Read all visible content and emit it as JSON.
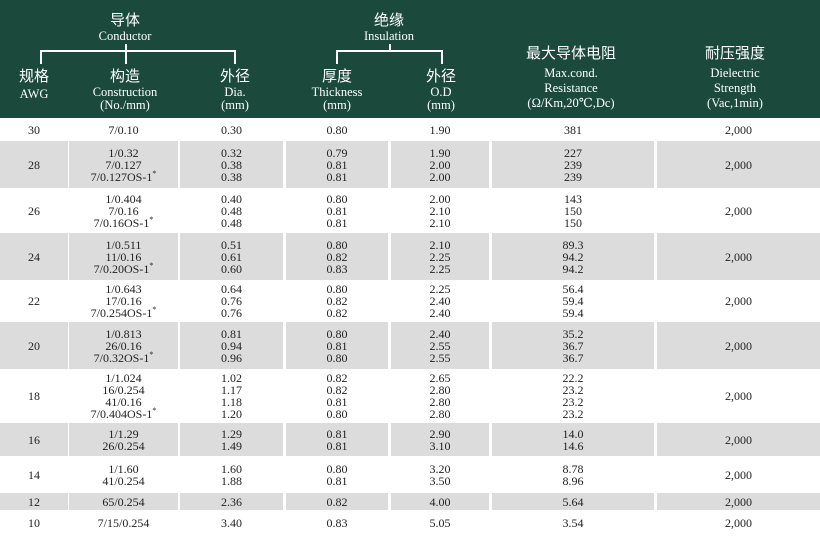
{
  "header": {
    "conductor_group": {
      "zh": "导体",
      "en": "Conductor"
    },
    "insulation_group": {
      "zh": "绝缘",
      "en": "Insulation"
    },
    "columns": [
      {
        "zh": "规格",
        "en": [
          "AWG"
        ]
      },
      {
        "zh": "构造",
        "en": [
          "Construction",
          "(No./mm)"
        ]
      },
      {
        "zh": "外径",
        "en": [
          "Dia.",
          "(mm)"
        ]
      },
      {
        "zh": "厚度",
        "en": [
          "Thickness",
          "(mm)"
        ]
      },
      {
        "zh": "外径",
        "en": [
          "O.D",
          "(mm)"
        ]
      },
      {
        "zh": "最大导体电阻",
        "en": [
          "Max.cond.",
          "Resistance",
          "(Ω/Km,20℃,Dc)"
        ]
      },
      {
        "zh": "耐压强度",
        "en": [
          "Dielectric",
          "Strength",
          "(Vac,1min)"
        ]
      }
    ]
  },
  "colors": {
    "header_bg": "#1b4a3c",
    "stripe": "#dcdcdc"
  },
  "rows": [
    {
      "awg": "30",
      "construction": [
        "7/0.10"
      ],
      "dia": [
        "0.30"
      ],
      "thickness": [
        "0.80"
      ],
      "od": [
        "1.90"
      ],
      "resistance": [
        "381"
      ],
      "dielectric": "2,000"
    },
    {
      "awg": "28",
      "construction": [
        "1/0.32",
        "7/0.127",
        "7/0.127OS-1*"
      ],
      "dia": [
        "0.32",
        "0.38",
        "0.38"
      ],
      "thickness": [
        "0.79",
        "0.81",
        "0.81"
      ],
      "od": [
        "1.90",
        "2.00",
        "2.00"
      ],
      "resistance": [
        "227",
        "239",
        "239"
      ],
      "dielectric": "2,000"
    },
    {
      "awg": "26",
      "construction": [
        "1/0.404",
        "7/0.16",
        "7/0.16OS-1*"
      ],
      "dia": [
        "0.40",
        "0.48",
        "0.48"
      ],
      "thickness": [
        "0.80",
        "0.81",
        "0.81"
      ],
      "od": [
        "2.00",
        "2.10",
        "2.10"
      ],
      "resistance": [
        "143",
        "150",
        "150"
      ],
      "dielectric": "2,000"
    },
    {
      "awg": "24",
      "construction": [
        "1/0.511",
        "11/0.16",
        "7/0.20OS-1*"
      ],
      "dia": [
        "0.51",
        "0.61",
        "0.60"
      ],
      "thickness": [
        "0.80",
        "0.82",
        "0.83"
      ],
      "od": [
        "2.10",
        "2.25",
        "2.25"
      ],
      "resistance": [
        "89.3",
        "94.2",
        "94.2"
      ],
      "dielectric": "2,000"
    },
    {
      "awg": "22",
      "construction": [
        "1/0.643",
        "17/0.16",
        "7/0.254OS-1*"
      ],
      "dia": [
        "0.64",
        "0.76",
        "0.76"
      ],
      "thickness": [
        "0.80",
        "0.82",
        "0.82"
      ],
      "od": [
        "2.25",
        "2.40",
        "2.40"
      ],
      "resistance": [
        "56.4",
        "59.4",
        "59.4"
      ],
      "dielectric": "2,000"
    },
    {
      "awg": "20",
      "construction": [
        "1/0.813",
        "26/0.16",
        "7/0.32OS-1*"
      ],
      "dia": [
        "0.81",
        "0.94",
        "0.96"
      ],
      "thickness": [
        "0.80",
        "0.81",
        "0.80"
      ],
      "od": [
        "2.40",
        "2.55",
        "2.55"
      ],
      "resistance": [
        "35.2",
        "36.7",
        "36.7"
      ],
      "dielectric": "2,000"
    },
    {
      "awg": "18",
      "construction": [
        "1/1.024",
        "16/0.254",
        "41/0.16",
        "7/0.404OS-1*"
      ],
      "dia": [
        "1.02",
        "1.17",
        "1.18",
        "1.20"
      ],
      "thickness": [
        "0.82",
        "0.82",
        "0.81",
        "0.80"
      ],
      "od": [
        "2.65",
        "2.80",
        "2.80",
        "2.80"
      ],
      "resistance": [
        "22.2",
        "23.2",
        "23.2",
        "23.2"
      ],
      "dielectric": "2,000"
    },
    {
      "awg": "16",
      "construction": [
        "1/1.29",
        "26/0.254"
      ],
      "dia": [
        "1.29",
        "1.49"
      ],
      "thickness": [
        "0.81",
        "0.81"
      ],
      "od": [
        "2.90",
        "3.10"
      ],
      "resistance": [
        "14.0",
        "14.6"
      ],
      "dielectric": "2,000"
    },
    {
      "awg": "14",
      "construction": [
        "1/1.60",
        "41/0.254"
      ],
      "dia": [
        "1.60",
        "1.88"
      ],
      "thickness": [
        "0.80",
        "0.81"
      ],
      "od": [
        "3.20",
        "3.50"
      ],
      "resistance": [
        "8.78",
        "8.96"
      ],
      "dielectric": "2,000"
    },
    {
      "awg": "12",
      "construction": [
        "65/0.254"
      ],
      "dia": [
        "2.36"
      ],
      "thickness": [
        "0.82"
      ],
      "od": [
        "4.00"
      ],
      "resistance": [
        "5.64"
      ],
      "dielectric": "2,000"
    },
    {
      "awg": "10",
      "construction": [
        "7/15/0.254"
      ],
      "dia": [
        "3.40"
      ],
      "thickness": [
        "0.83"
      ],
      "od": [
        "5.05"
      ],
      "resistance": [
        "3.54"
      ],
      "dielectric": "2,000"
    }
  ]
}
